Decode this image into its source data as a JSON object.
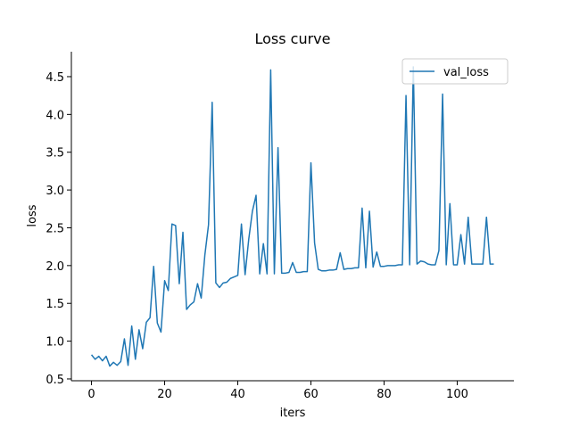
{
  "chart_data": {
    "type": "line",
    "title": "Loss curve",
    "xlabel": "iters",
    "ylabel": "loss",
    "x": [
      0,
      1,
      2,
      3,
      4,
      5,
      6,
      7,
      8,
      9,
      10,
      11,
      12,
      13,
      14,
      15,
      16,
      17,
      18,
      19,
      20,
      21,
      22,
      23,
      24,
      25,
      26,
      27,
      28,
      29,
      30,
      31,
      32,
      33,
      34,
      35,
      36,
      37,
      38,
      39,
      40,
      41,
      42,
      43,
      44,
      45,
      46,
      47,
      48,
      49,
      50,
      51,
      52,
      53,
      54,
      55,
      56,
      57,
      58,
      59,
      60,
      61,
      62,
      63,
      64,
      65,
      66,
      67,
      68,
      69,
      70,
      71,
      72,
      73,
      74,
      75,
      76,
      77,
      78,
      79,
      80,
      81,
      82,
      83,
      84,
      85,
      86,
      87,
      88,
      89,
      90,
      91,
      92,
      93,
      94,
      95,
      96,
      97,
      98,
      99,
      100,
      101,
      102,
      103,
      104,
      105,
      106,
      107,
      108,
      109,
      110
    ],
    "series": [
      {
        "name": "val_loss",
        "color": "#1f77b4",
        "values": [
          0.82,
          0.76,
          0.8,
          0.74,
          0.8,
          0.67,
          0.72,
          0.68,
          0.73,
          1.03,
          0.68,
          1.2,
          0.76,
          1.15,
          0.9,
          1.25,
          1.31,
          1.99,
          1.24,
          1.12,
          1.8,
          1.67,
          2.55,
          2.53,
          1.76,
          2.44,
          1.42,
          1.48,
          1.52,
          1.76,
          1.57,
          2.14,
          2.54,
          4.16,
          1.77,
          1.71,
          1.77,
          1.78,
          1.83,
          1.85,
          1.87,
          2.55,
          1.88,
          2.35,
          2.72,
          2.93,
          1.89,
          2.29,
          1.89,
          4.59,
          1.89,
          3.56,
          1.9,
          1.9,
          1.91,
          2.04,
          1.91,
          1.91,
          1.92,
          1.92,
          3.36,
          2.3,
          1.95,
          1.93,
          1.93,
          1.94,
          1.94,
          1.95,
          2.17,
          1.95,
          1.96,
          1.96,
          1.97,
          1.97,
          2.76,
          1.97,
          2.72,
          1.98,
          2.18,
          1.99,
          1.99,
          2.0,
          2.0,
          2.0,
          2.01,
          2.01,
          4.25,
          2.01,
          4.63,
          2.02,
          2.06,
          2.05,
          2.02,
          2.01,
          2.01,
          2.2,
          4.27,
          2.01,
          2.82,
          2.01,
          2.01,
          2.41,
          2.02,
          2.64,
          2.02,
          2.02,
          2.02,
          2.02,
          2.64,
          2.02,
          2.02
        ]
      }
    ],
    "xlim": [
      -5.5,
      115.5
    ],
    "xticks": [
      0,
      20,
      40,
      60,
      80,
      100
    ],
    "ylim": [
      0.476,
      4.83
    ],
    "yticks": [
      0.5,
      {
        "value": 1,
        "label": "1.0"
      },
      1.5,
      {
        "value": 2,
        "label": "2.0"
      },
      2.5,
      {
        "value": 3,
        "label": "3.0"
      },
      3.5,
      {
        "value": 4,
        "label": "4.0"
      },
      4.5
    ],
    "legend": "upper right"
  }
}
